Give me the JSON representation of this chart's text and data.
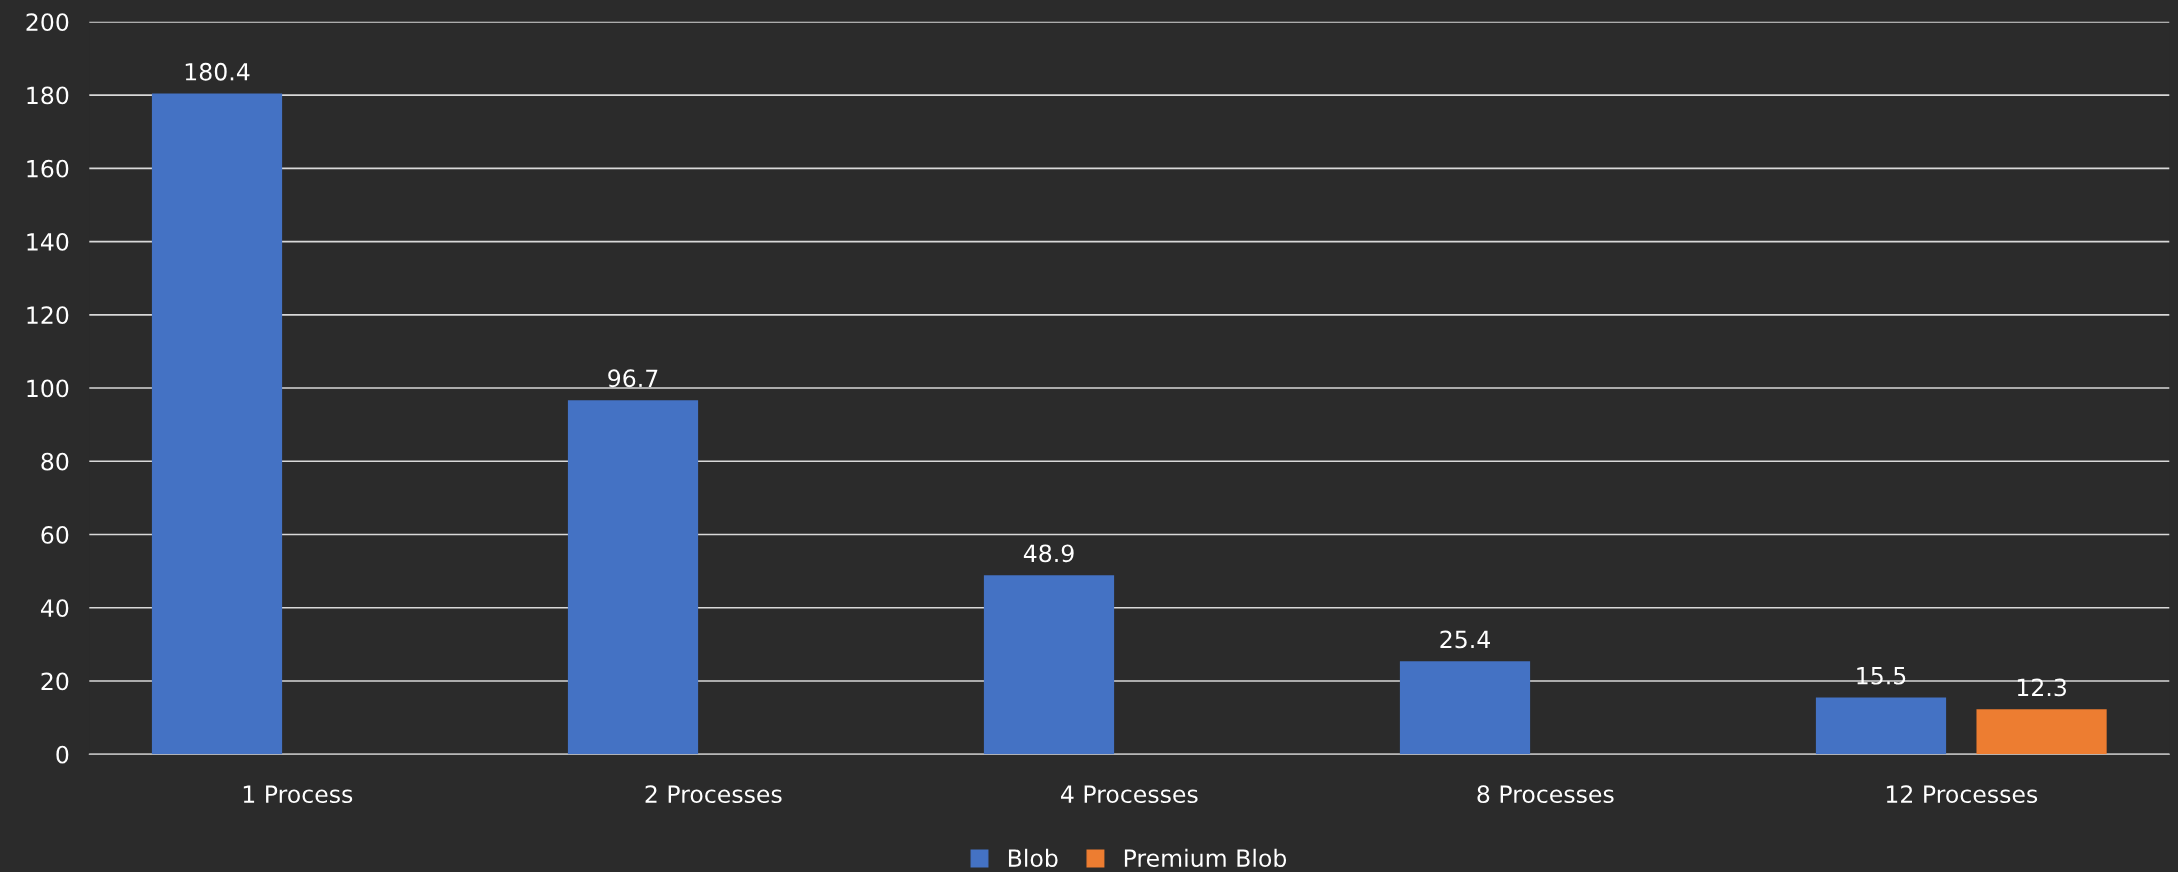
{
  "chart_data": {
    "type": "bar",
    "categories": [
      "1 Process",
      "2 Processes",
      "4 Processes",
      "8 Processes",
      "12 Processes"
    ],
    "series": [
      {
        "name": "Blob",
        "color": "#4472c4",
        "values": [
          180.4,
          96.7,
          48.9,
          25.4,
          15.5
        ]
      },
      {
        "name": "Premium Blob",
        "color": "#ed7d31",
        "values": [
          null,
          null,
          null,
          null,
          12.3
        ]
      }
    ],
    "ylim": [
      0,
      200
    ],
    "yticks": [
      0,
      20,
      40,
      60,
      80,
      100,
      120,
      140,
      160,
      180,
      200
    ],
    "grid": "y",
    "legend": "bottom",
    "data_labels": true
  }
}
